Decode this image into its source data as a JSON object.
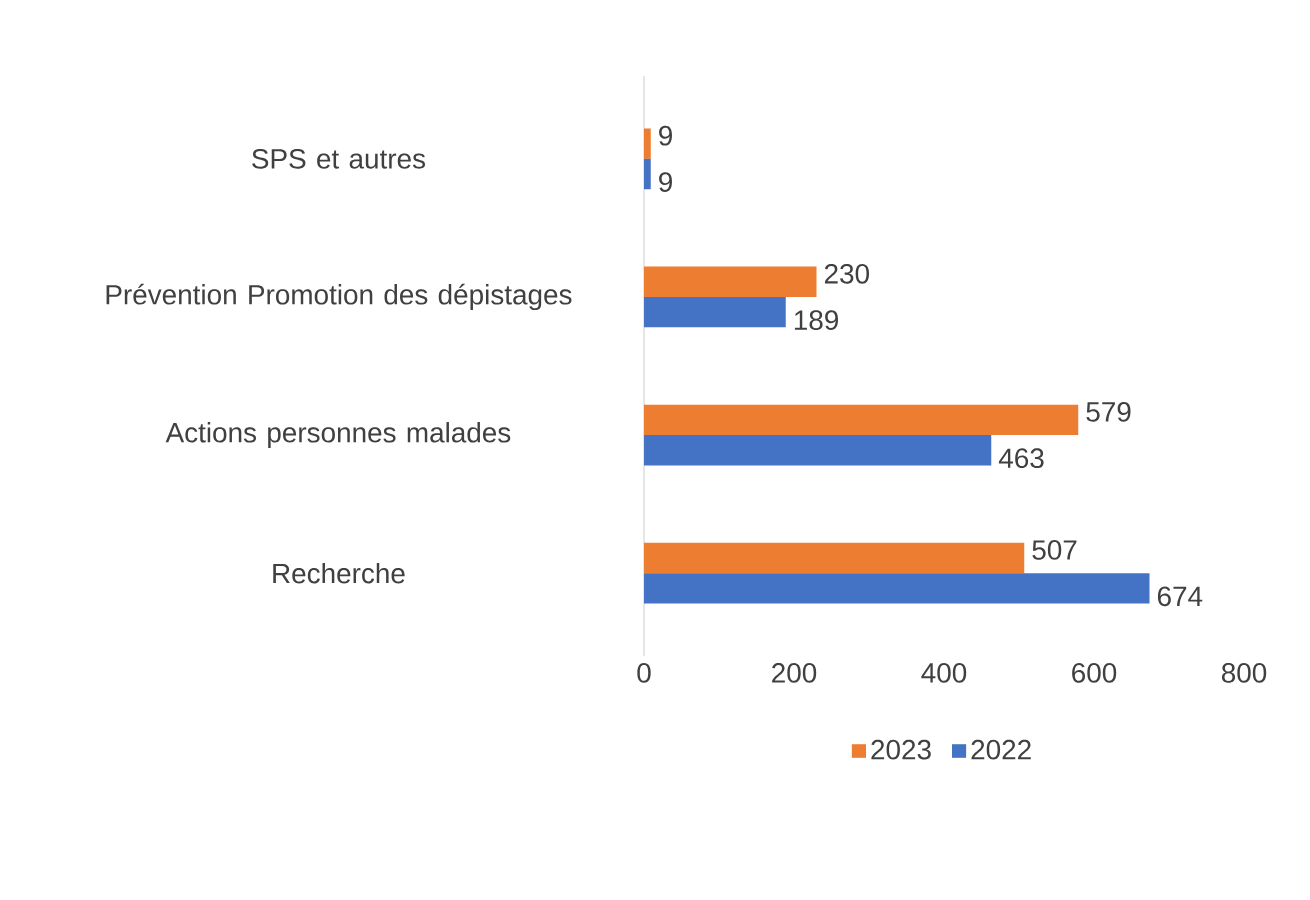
{
  "chart_data": {
    "type": "bar",
    "orientation": "horizontal",
    "categories": [
      "SPS et autres",
      "Prévention Promotion des dépistages",
      "Actions personnes malades",
      "Recherche"
    ],
    "series": [
      {
        "name": "2023",
        "color": "#ed7d31",
        "values": [
          9,
          230,
          579,
          507
        ]
      },
      {
        "name": "2022",
        "color": "#4472c4",
        "values": [
          9,
          189,
          463,
          674
        ]
      }
    ],
    "xlim": [
      0,
      800
    ],
    "xticks": [
      0,
      200,
      400,
      600,
      800
    ],
    "data_labels": true,
    "legend": "bottom",
    "grid": false
  }
}
